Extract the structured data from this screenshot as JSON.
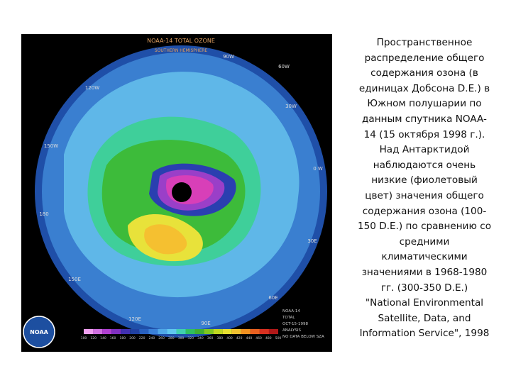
{
  "slide": {
    "map": {
      "title": "NOAA-14 TOTAL OZONE",
      "subtitle": "SOUTHERN HEMISPHERE",
      "longitude_labels": [
        "90W",
        "60W",
        "120W",
        "30W",
        "150W",
        "0 W",
        "180",
        "30E",
        "150E",
        "60E",
        "120E",
        "90E"
      ],
      "info_lines": [
        "NOAA-14",
        "TOTAL",
        "OCT-15-1998",
        "ANALYSIS",
        "NO DATA BELOW SZA"
      ],
      "colorbar_labels": [
        "100",
        "120",
        "140",
        "160",
        "180",
        "200",
        "220",
        "240",
        "260",
        "280",
        "300",
        "320",
        "340",
        "360",
        "380",
        "400",
        "420",
        "440",
        "460",
        "480",
        "500"
      ],
      "logo": "NOAA"
    },
    "caption_lines": [
      "Пространственное",
      "распределение общего",
      "содержания озона (в",
      "единицах Добсона D.E.) в",
      "Южном полушарии по",
      "данным спутника NOAA-",
      "14 (15 октября 1998 г.).",
      "Над Антарктидой",
      "наблюдаются очень",
      "низкие (фиолетовый",
      "цвет) значения общего",
      "содержания озона (100-",
      "150 D.E.) по сравнению со",
      "средними",
      "климатическими",
      "значениями в 1968-1980",
      "гг. (300-350 D.E.)",
      "\"National Environmental",
      "Satellite, Data, and",
      "Information Service\", 1998"
    ]
  }
}
